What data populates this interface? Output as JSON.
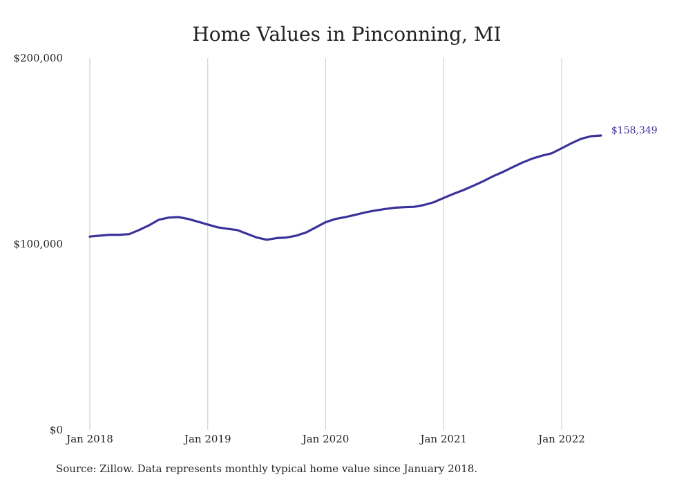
{
  "chart_data": {
    "type": "line",
    "title": "Home Values in Pinconning, MI",
    "xlabel": "",
    "ylabel": "",
    "source_note": "Source: Zillow. Data represents monthly typical home value since January 2018.",
    "x_ticks": [
      "Jan 2018",
      "Jan 2019",
      "Jan 2020",
      "Jan 2021",
      "Jan 2022"
    ],
    "y_ticks": [
      "$0",
      "$100,000",
      "$200,000"
    ],
    "ylim": [
      0,
      200000
    ],
    "grid": "vertical",
    "line_color": "#3b329a",
    "end_label": "$158,349",
    "series": [
      {
        "x": [
          "2018-01",
          "2018-02",
          "2018-03",
          "2018-04",
          "2018-05",
          "2018-06",
          "2018-07",
          "2018-08",
          "2018-09",
          "2018-10",
          "2018-11",
          "2018-12",
          "2019-01",
          "2019-02",
          "2019-03",
          "2019-04",
          "2019-05",
          "2019-06",
          "2019-07",
          "2019-08",
          "2019-09",
          "2019-10",
          "2019-11",
          "2019-12",
          "2020-01",
          "2020-02",
          "2020-03",
          "2020-04",
          "2020-05",
          "2020-06",
          "2020-07",
          "2020-08",
          "2020-09",
          "2020-10",
          "2020-11",
          "2020-12",
          "2021-01",
          "2021-02",
          "2021-03",
          "2021-04",
          "2021-05",
          "2021-06",
          "2021-07",
          "2021-08",
          "2021-09",
          "2021-10",
          "2021-11",
          "2021-12",
          "2022-01",
          "2022-02",
          "2022-03",
          "2022-04",
          "2022-05"
        ],
        "values": [
          104000,
          104500,
          105000,
          105000,
          105300,
          107500,
          110000,
          113000,
          114200,
          114500,
          113500,
          112000,
          110500,
          109000,
          108200,
          107500,
          105500,
          103500,
          102300,
          103200,
          103500,
          104500,
          106200,
          109000,
          111800,
          113500,
          114500,
          115700,
          117000,
          118000,
          118800,
          119500,
          119800,
          120000,
          121000,
          122500,
          124800,
          127000,
          129000,
          131300,
          133700,
          136400,
          138700,
          141300,
          143800,
          145900,
          147500,
          148800,
          151500,
          154200,
          156600,
          158000,
          158349
        ]
      }
    ]
  }
}
